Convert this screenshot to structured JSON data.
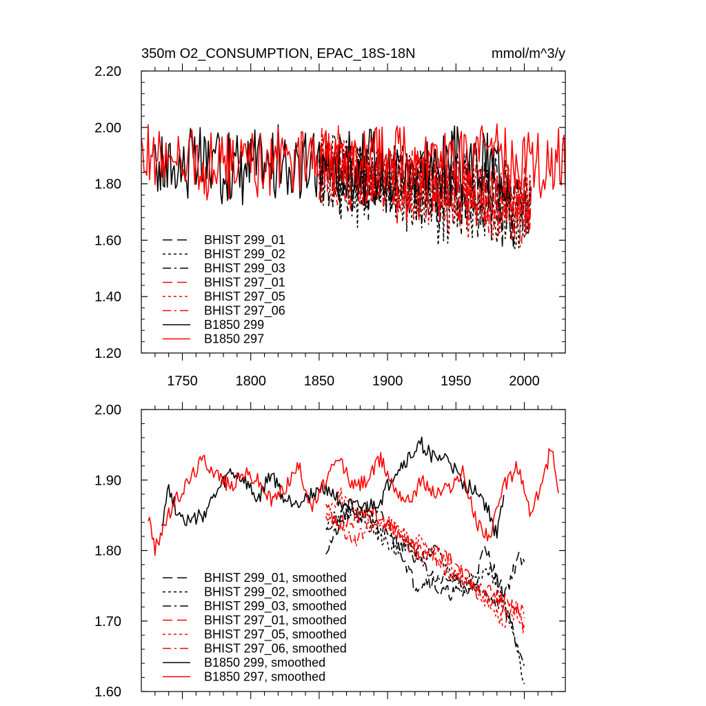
{
  "chart_data": [
    {
      "type": "line",
      "title": "350m O2_CONSUMPTION, EPAC_18S-18N",
      "units": "mmol/m^3/y",
      "xlim": [
        1720,
        2030
      ],
      "ylim": [
        1.2,
        2.2
      ],
      "yticks": [
        "1.20",
        "1.40",
        "1.60",
        "1.80",
        "2.00",
        "2.20"
      ],
      "xticks": [
        "1750",
        "1800",
        "1850",
        "1900",
        "1950",
        "2000"
      ],
      "legend_position": "bottom-left",
      "series": [
        {
          "name": "BHIST 299_01",
          "color": "#000000",
          "dash": "long-dash",
          "seed": 11,
          "start": 1850,
          "end": 2005,
          "base_start": 1.86,
          "base_end": 1.72,
          "amp": 0.13,
          "mode": "raw"
        },
        {
          "name": "BHIST 299_02",
          "color": "#000000",
          "dash": "short-dash",
          "seed": 12,
          "start": 1850,
          "end": 2005,
          "base_start": 1.85,
          "base_end": 1.68,
          "amp": 0.14,
          "mode": "raw"
        },
        {
          "name": "BHIST 299_03",
          "color": "#000000",
          "dash": "dash-dot",
          "seed": 13,
          "start": 1850,
          "end": 2005,
          "base_start": 1.84,
          "base_end": 1.73,
          "amp": 0.12,
          "mode": "raw"
        },
        {
          "name": "BHIST 297_01",
          "color": "#ff0000",
          "dash": "long-dash",
          "seed": 14,
          "start": 1850,
          "end": 2005,
          "base_start": 1.87,
          "base_end": 1.73,
          "amp": 0.12,
          "mode": "raw"
        },
        {
          "name": "BHIST 297_05",
          "color": "#ff0000",
          "dash": "short-dash",
          "seed": 15,
          "start": 1850,
          "end": 2005,
          "base_start": 1.86,
          "base_end": 1.71,
          "amp": 0.12,
          "mode": "raw"
        },
        {
          "name": "BHIST 297_06",
          "color": "#ff0000",
          "dash": "dash-dot",
          "seed": 16,
          "start": 1850,
          "end": 2005,
          "base_start": 1.86,
          "base_end": 1.72,
          "amp": 0.12,
          "mode": "raw"
        },
        {
          "name": "B1850 299",
          "color": "#000000",
          "dash": "solid",
          "seed": 17,
          "start": 1730,
          "end": 1990,
          "base_start": 1.87,
          "base_end": 1.86,
          "amp": 0.12,
          "mode": "raw"
        },
        {
          "name": "B1850 297",
          "color": "#ff0000",
          "dash": "solid",
          "seed": 18,
          "start": 1720,
          "end": 2030,
          "base_start": 1.88,
          "base_end": 1.88,
          "amp": 0.11,
          "mode": "raw"
        }
      ]
    },
    {
      "type": "line",
      "title": "",
      "xlim": [
        1720,
        2030
      ],
      "ylim": [
        1.6,
        2.0
      ],
      "yticks": [
        "1.60",
        "1.70",
        "1.80",
        "1.90",
        "2.00"
      ],
      "xticks": [],
      "legend_position": "bottom-left",
      "series": [
        {
          "name": "BHIST 299_01, smoothed",
          "color": "#000000",
          "dash": "long-dash",
          "seed": 21,
          "start": 1855,
          "end": 2000,
          "points": [
            [
              1855,
              1.8
            ],
            [
              1870,
              1.85
            ],
            [
              1885,
              1.86
            ],
            [
              1900,
              1.84
            ],
            [
              1910,
              1.8
            ],
            [
              1920,
              1.75
            ],
            [
              1930,
              1.76
            ],
            [
              1940,
              1.74
            ],
            [
              1950,
              1.74
            ],
            [
              1960,
              1.74
            ],
            [
              1965,
              1.76
            ],
            [
              1970,
              1.8
            ],
            [
              1975,
              1.79
            ],
            [
              1980,
              1.76
            ],
            [
              1985,
              1.74
            ],
            [
              1990,
              1.76
            ],
            [
              1995,
              1.79
            ],
            [
              2000,
              1.78
            ]
          ]
        },
        {
          "name": "BHIST 299_02, smoothed",
          "color": "#000000",
          "dash": "short-dash",
          "seed": 22,
          "start": 1855,
          "end": 2000,
          "points": [
            [
              1855,
              1.84
            ],
            [
              1870,
              1.86
            ],
            [
              1885,
              1.84
            ],
            [
              1895,
              1.82
            ],
            [
              1905,
              1.8
            ],
            [
              1915,
              1.81
            ],
            [
              1925,
              1.79
            ],
            [
              1935,
              1.8
            ],
            [
              1945,
              1.77
            ],
            [
              1955,
              1.75
            ],
            [
              1965,
              1.77
            ],
            [
              1975,
              1.77
            ],
            [
              1985,
              1.73
            ],
            [
              1990,
              1.69
            ],
            [
              1995,
              1.66
            ],
            [
              2000,
              1.6
            ]
          ]
        },
        {
          "name": "BHIST 299_03, smoothed",
          "color": "#000000",
          "dash": "dash-dot",
          "seed": 23,
          "start": 1855,
          "end": 2000,
          "points": [
            [
              1855,
              1.82
            ],
            [
              1865,
              1.85
            ],
            [
              1875,
              1.85
            ],
            [
              1885,
              1.85
            ],
            [
              1895,
              1.83
            ],
            [
              1905,
              1.81
            ],
            [
              1915,
              1.8
            ],
            [
              1925,
              1.78
            ],
            [
              1935,
              1.76
            ],
            [
              1945,
              1.76
            ],
            [
              1955,
              1.75
            ],
            [
              1965,
              1.75
            ],
            [
              1975,
              1.73
            ],
            [
              1985,
              1.72
            ],
            [
              1990,
              1.7
            ],
            [
              1995,
              1.66
            ],
            [
              2000,
              1.64
            ]
          ]
        },
        {
          "name": "BHIST 297_01, smoothed",
          "color": "#ff0000",
          "dash": "long-dash",
          "seed": 24,
          "start": 1855,
          "end": 2000,
          "points": [
            [
              1855,
              1.86
            ],
            [
              1865,
              1.84
            ],
            [
              1875,
              1.84
            ],
            [
              1885,
              1.86
            ],
            [
              1895,
              1.85
            ],
            [
              1905,
              1.83
            ],
            [
              1915,
              1.81
            ],
            [
              1925,
              1.8
            ],
            [
              1935,
              1.8
            ],
            [
              1945,
              1.79
            ],
            [
              1955,
              1.77
            ],
            [
              1965,
              1.75
            ],
            [
              1975,
              1.74
            ],
            [
              1985,
              1.73
            ],
            [
              1995,
              1.72
            ],
            [
              2000,
              1.69
            ]
          ]
        },
        {
          "name": "BHIST 297_05, smoothed",
          "color": "#ff0000",
          "dash": "short-dash",
          "seed": 25,
          "start": 1855,
          "end": 2000,
          "points": [
            [
              1855,
              1.85
            ],
            [
              1865,
              1.88
            ],
            [
              1875,
              1.86
            ],
            [
              1885,
              1.85
            ],
            [
              1895,
              1.84
            ],
            [
              1905,
              1.83
            ],
            [
              1915,
              1.82
            ],
            [
              1925,
              1.81
            ],
            [
              1935,
              1.79
            ],
            [
              1945,
              1.78
            ],
            [
              1955,
              1.76
            ],
            [
              1965,
              1.75
            ],
            [
              1975,
              1.72
            ],
            [
              1985,
              1.7
            ],
            [
              1995,
              1.71
            ],
            [
              2000,
              1.69
            ]
          ]
        },
        {
          "name": "BHIST 297_06, smoothed",
          "color": "#ff0000",
          "dash": "dash-dot",
          "seed": 26,
          "start": 1855,
          "end": 2000,
          "points": [
            [
              1855,
              1.85
            ],
            [
              1865,
              1.84
            ],
            [
              1875,
              1.81
            ],
            [
              1885,
              1.83
            ],
            [
              1895,
              1.84
            ],
            [
              1905,
              1.83
            ],
            [
              1915,
              1.81
            ],
            [
              1925,
              1.79
            ],
            [
              1935,
              1.79
            ],
            [
              1945,
              1.77
            ],
            [
              1955,
              1.76
            ],
            [
              1965,
              1.74
            ],
            [
              1975,
              1.73
            ],
            [
              1985,
              1.72
            ],
            [
              1995,
              1.72
            ],
            [
              2000,
              1.71
            ]
          ]
        },
        {
          "name": "B1850 299, smoothed",
          "color": "#000000",
          "dash": "solid",
          "seed": 27,
          "start": 1735,
          "end": 1985,
          "points": [
            [
              1735,
              1.84
            ],
            [
              1740,
              1.89
            ],
            [
              1745,
              1.86
            ],
            [
              1755,
              1.84
            ],
            [
              1765,
              1.85
            ],
            [
              1775,
              1.88
            ],
            [
              1785,
              1.91
            ],
            [
              1795,
              1.9
            ],
            [
              1805,
              1.87
            ],
            [
              1815,
              1.91
            ],
            [
              1825,
              1.87
            ],
            [
              1835,
              1.87
            ],
            [
              1845,
              1.88
            ],
            [
              1855,
              1.89
            ],
            [
              1865,
              1.87
            ],
            [
              1875,
              1.86
            ],
            [
              1885,
              1.86
            ],
            [
              1895,
              1.87
            ],
            [
              1905,
              1.91
            ],
            [
              1915,
              1.93
            ],
            [
              1925,
              1.95
            ],
            [
              1935,
              1.93
            ],
            [
              1945,
              1.93
            ],
            [
              1955,
              1.89
            ],
            [
              1965,
              1.89
            ],
            [
              1975,
              1.85
            ],
            [
              1980,
              1.82
            ],
            [
              1985,
              1.88
            ]
          ]
        },
        {
          "name": "B1850 297, smoothed",
          "color": "#ff0000",
          "dash": "solid",
          "seed": 28,
          "start": 1725,
          "end": 2025,
          "points": [
            [
              1725,
              1.85
            ],
            [
              1730,
              1.8
            ],
            [
              1735,
              1.83
            ],
            [
              1745,
              1.87
            ],
            [
              1755,
              1.9
            ],
            [
              1765,
              1.93
            ],
            [
              1775,
              1.91
            ],
            [
              1785,
              1.89
            ],
            [
              1795,
              1.91
            ],
            [
              1805,
              1.9
            ],
            [
              1815,
              1.87
            ],
            [
              1825,
              1.89
            ],
            [
              1835,
              1.92
            ],
            [
              1845,
              1.86
            ],
            [
              1855,
              1.9
            ],
            [
              1865,
              1.93
            ],
            [
              1875,
              1.89
            ],
            [
              1885,
              1.9
            ],
            [
              1895,
              1.93
            ],
            [
              1905,
              1.89
            ],
            [
              1915,
              1.87
            ],
            [
              1925,
              1.9
            ],
            [
              1935,
              1.88
            ],
            [
              1945,
              1.89
            ],
            [
              1955,
              1.91
            ],
            [
              1965,
              1.84
            ],
            [
              1975,
              1.82
            ],
            [
              1985,
              1.89
            ],
            [
              1995,
              1.92
            ],
            [
              2005,
              1.85
            ],
            [
              2015,
              1.91
            ],
            [
              2020,
              1.95
            ],
            [
              2025,
              1.89
            ]
          ]
        }
      ]
    }
  ]
}
